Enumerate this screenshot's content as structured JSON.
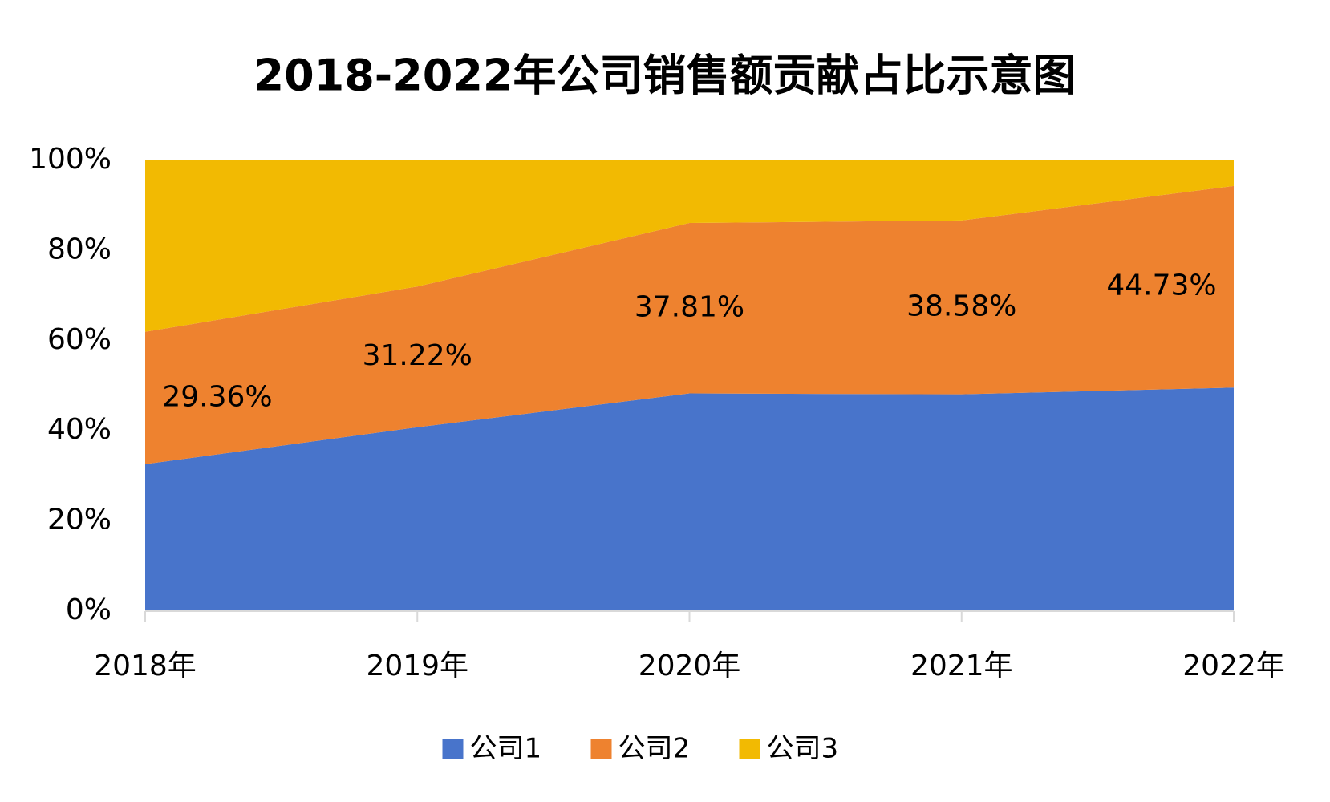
{
  "chart_data": {
    "type": "stacked_area",
    "title": "2018-2022年公司销售额贡献占比示意图",
    "categories": [
      "2018年",
      "2019年",
      "2020年",
      "2021年",
      "2022年"
    ],
    "series": [
      {
        "name": "公司1",
        "color": "#4874cb",
        "values": [
          32.6,
          40.8,
          48.3,
          48.1,
          49.6
        ]
      },
      {
        "name": "公司2",
        "color": "#ee822f",
        "values": [
          29.36,
          31.22,
          37.81,
          38.58,
          44.73
        ],
        "value_labels": [
          "29.36%",
          "31.22%",
          "37.81%",
          "38.58%",
          "44.73%"
        ]
      },
      {
        "name": "公司3",
        "color": "#f2ba02",
        "values": [
          38.04,
          27.98,
          13.89,
          13.32,
          5.67
        ]
      }
    ],
    "ylim": [
      0,
      100
    ],
    "yticks": [
      {
        "value": 0,
        "label": "0%"
      },
      {
        "value": 20,
        "label": "20%"
      },
      {
        "value": 40,
        "label": "40%"
      },
      {
        "value": 60,
        "label": "60%"
      },
      {
        "value": 80,
        "label": "80%"
      },
      {
        "value": 100,
        "label": "100%"
      }
    ],
    "grid": false,
    "legend": "bottom"
  }
}
